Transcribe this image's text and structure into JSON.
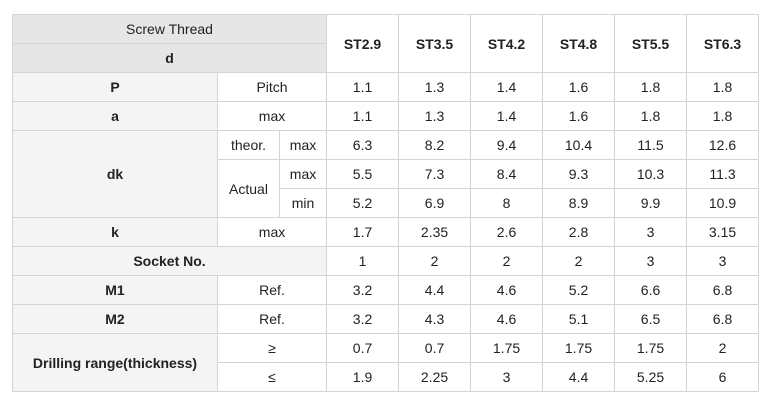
{
  "header": {
    "screw_thread": "Screw Thread",
    "d": "d",
    "sizes": [
      "ST2.9",
      "ST3.5",
      "ST4.2",
      "ST4.8",
      "ST5.5",
      "ST6.3"
    ]
  },
  "rows": {
    "P": {
      "name": "P",
      "sub": "Pitch",
      "values": [
        "1.1",
        "1.3",
        "1.4",
        "1.6",
        "1.8",
        "1.8"
      ]
    },
    "a": {
      "name": "a",
      "sub": "max",
      "values": [
        "1.1",
        "1.3",
        "1.4",
        "1.6",
        "1.8",
        "1.8"
      ]
    },
    "dk": {
      "name": "dk",
      "theor": "theor.",
      "actual": "Actual",
      "theor_max": {
        "sub": "max",
        "values": [
          "6.3",
          "8.2",
          "9.4",
          "10.4",
          "11.5",
          "12.6"
        ]
      },
      "actual_max": {
        "sub": "max",
        "values": [
          "5.5",
          "7.3",
          "8.4",
          "9.3",
          "10.3",
          "11.3"
        ]
      },
      "actual_min": {
        "sub": "min",
        "values": [
          "5.2",
          "6.9",
          "8",
          "8.9",
          "9.9",
          "10.9"
        ]
      }
    },
    "k": {
      "name": "k",
      "sub": "max",
      "values": [
        "1.7",
        "2.35",
        "2.6",
        "2.8",
        "3",
        "3.15"
      ]
    },
    "socket": {
      "name": "Socket No.",
      "values": [
        "1",
        "2",
        "2",
        "2",
        "3",
        "3"
      ]
    },
    "M1": {
      "name": "M1",
      "sub": "Ref.",
      "values": [
        "3.2",
        "4.4",
        "4.6",
        "5.2",
        "6.6",
        "6.8"
      ]
    },
    "M2": {
      "name": "M2",
      "sub": "Ref.",
      "values": [
        "3.2",
        "4.3",
        "4.6",
        "5.1",
        "6.5",
        "6.8"
      ]
    },
    "drill": {
      "name": "Drilling range(thickness)",
      "ge": {
        "sub": "≥",
        "values": [
          "0.7",
          "0.7",
          "1.75",
          "1.75",
          "1.75",
          "2"
        ]
      },
      "le": {
        "sub": "≤",
        "values": [
          "1.9",
          "2.25",
          "3",
          "4.4",
          "5.25",
          "6"
        ]
      }
    }
  }
}
